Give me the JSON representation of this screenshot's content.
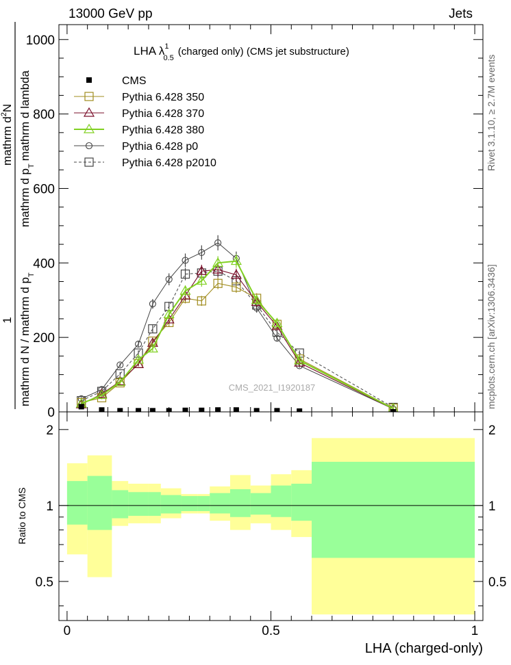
{
  "header": {
    "left": "13000 GeV pp",
    "right": "Jets",
    "title": "LHA λ",
    "title_sup": "1",
    "title_sub": "0.5",
    "title_rest": "(charged only) (CMS jet substructure)"
  },
  "side_labels": {
    "rivet": "Rivet 3.1.10, ≥ 2.7M events",
    "mcplots": "mcplots.cern.ch [arXiv:1306.3436]"
  },
  "watermark": "CMS_2021_I1920187",
  "ylabel_main": {
    "one": "1",
    "den": "mathrm d N / mathrm d p",
    "den_sub": "T",
    "num1": "mathrm d",
    "num1_sup": "2",
    "num1_rest": "N",
    "num2a": "mathrm d p",
    "num2a_sub": "T",
    "num2b": "mathrm d lambda"
  },
  "ylabel_ratio": "Ratio to CMS",
  "xlabel": "LHA (charged-only)",
  "main_y_ticks": [
    "0",
    "200",
    "400",
    "600",
    "800",
    "1000"
  ],
  "ratio_y_ticks": [
    "0.5",
    "1",
    "2"
  ],
  "x_ticks": [
    "0",
    "0.5",
    "1"
  ],
  "legend_location": "top-left",
  "colors": {
    "cms": "#000000",
    "p350": "#a08c1e",
    "p370": "#7a0f2a",
    "p380": "#80d020",
    "p0": "#444444",
    "p2010": "#444444",
    "band_green": "#99ff99",
    "band_yellow": "#ffff99"
  },
  "chart_data": {
    "type": "line",
    "xlim": [
      -0.02,
      1.02
    ],
    "ylim": [
      0,
      1040
    ],
    "ratio_ylim": [
      0.35,
      2.35
    ],
    "ratio_scale": "log",
    "bin_edges": [
      0,
      0.05,
      0.11,
      0.15,
      0.2,
      0.23,
      0.28,
      0.32,
      0.35,
      0.4,
      0.45,
      0.5,
      0.55,
      0.6,
      1.0
    ],
    "x_centers": [
      0.035,
      0.085,
      0.13,
      0.175,
      0.21,
      0.25,
      0.29,
      0.33,
      0.37,
      0.415,
      0.465,
      0.515,
      0.57,
      0.8
    ],
    "cms": {
      "name": "CMS",
      "values": [
        14,
        5,
        3,
        3,
        3,
        3,
        4,
        4,
        5,
        5,
        3,
        3,
        2,
        0
      ],
      "ratio_green": [
        [
          0.84,
          1.25
        ],
        [
          0.8,
          1.31
        ],
        [
          0.89,
          1.15
        ],
        [
          0.91,
          1.13
        ],
        [
          0.91,
          1.13
        ],
        [
          0.93,
          1.1
        ],
        [
          0.95,
          1.09
        ],
        [
          0.95,
          1.09
        ],
        [
          0.93,
          1.12
        ],
        [
          0.9,
          1.16
        ],
        [
          0.92,
          1.12
        ],
        [
          0.9,
          1.2
        ],
        [
          0.87,
          1.22
        ],
        [
          0.62,
          1.49
        ]
      ],
      "ratio_yellow": [
        [
          0.64,
          1.47
        ],
        [
          0.52,
          1.58
        ],
        [
          0.83,
          1.25
        ],
        [
          0.85,
          1.22
        ],
        [
          0.85,
          1.22
        ],
        [
          0.89,
          1.17
        ],
        [
          0.93,
          1.11
        ],
        [
          0.93,
          1.11
        ],
        [
          0.87,
          1.19
        ],
        [
          0.8,
          1.32
        ],
        [
          0.85,
          1.2
        ],
        [
          0.8,
          1.33
        ],
        [
          0.75,
          1.38
        ],
        [
          0.37,
          1.85
        ]
      ]
    },
    "series": [
      {
        "name": "Pythia 6.428 350",
        "key": "p350",
        "marker": "square",
        "values": [
          25,
          38,
          78,
          130,
          190,
          240,
          305,
          298,
          345,
          335,
          305,
          235,
          142,
          10
        ]
      },
      {
        "name": "Pythia 6.428 370",
        "key": "p370",
        "marker": "triangle",
        "values": [
          20,
          48,
          82,
          128,
          185,
          248,
          312,
          378,
          382,
          368,
          295,
          230,
          132,
          8
        ]
      },
      {
        "name": "Pythia 6.428 380",
        "key": "p380",
        "marker": "triangle",
        "values": [
          22,
          45,
          80,
          140,
          170,
          262,
          325,
          352,
          400,
          405,
          300,
          238,
          138,
          9
        ]
      },
      {
        "name": "Pythia 6.428 p0",
        "key": "p0",
        "marker": "circle",
        "values": [
          35,
          60,
          126,
          182,
          290,
          356,
          407,
          428,
          454,
          412,
          279,
          198,
          124,
          8
        ]
      },
      {
        "name": "Pythia 6.428 p2010",
        "key": "p2010",
        "marker": "square",
        "values": [
          30,
          55,
          102,
          158,
          223,
          283,
          370,
          373,
          378,
          352,
          287,
          214,
          158,
          12
        ]
      }
    ]
  }
}
